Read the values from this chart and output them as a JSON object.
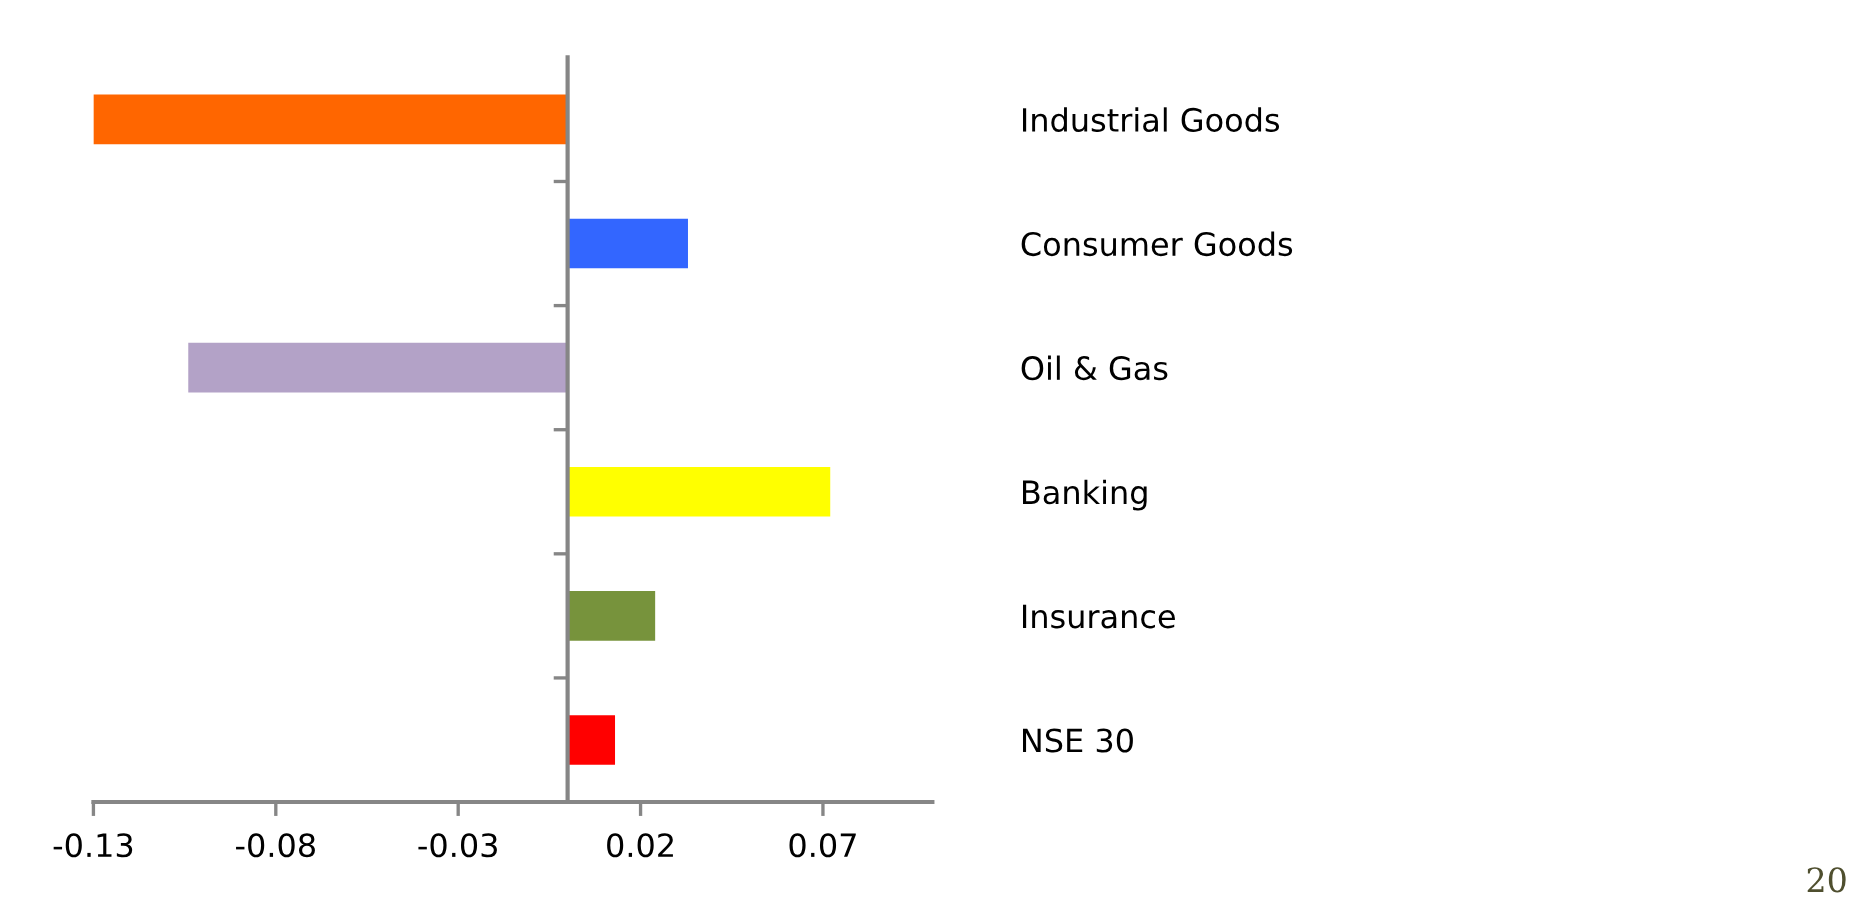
{
  "chart_data": {
    "type": "bar",
    "orientation": "horizontal",
    "categories": [
      "Industrial Goods",
      "Consumer Goods",
      "Oil & Gas",
      "Banking",
      "Insurance",
      "NSE 30"
    ],
    "values": [
      -0.13,
      0.033,
      -0.104,
      0.072,
      0.024,
      0.013
    ],
    "colors": [
      "#ff6600",
      "#3366ff",
      "#b3a2c7",
      "#ffff00",
      "#77933c",
      "#ff0000"
    ],
    "xlim": [
      -0.13,
      0.1
    ],
    "xticks": [
      -0.13,
      -0.08,
      -0.03,
      0.02,
      0.07
    ],
    "grid": false,
    "legend": false,
    "annotations": [
      "20"
    ]
  }
}
